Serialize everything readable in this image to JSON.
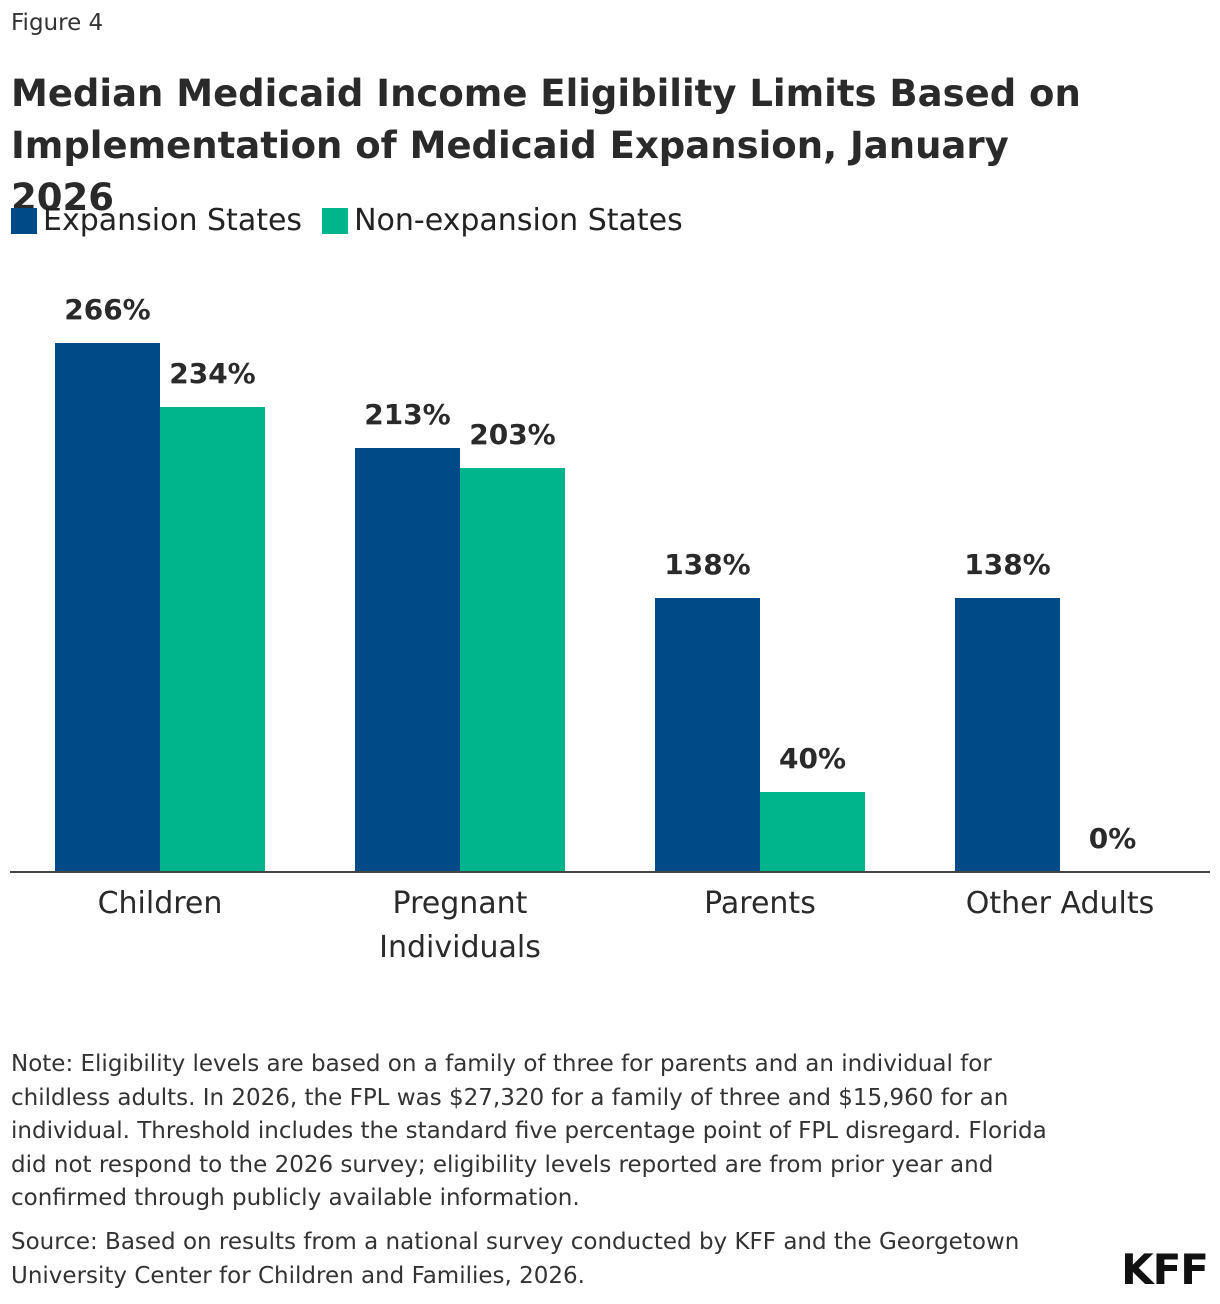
{
  "figure_label": "Figure 4",
  "chart_data": {
    "type": "bar",
    "title": "Median Medicaid Income Eligibility Limits Based on Implementation of Medicaid Expansion, January 2026",
    "categories": [
      "Children",
      "Pregnant Individuals",
      "Parents",
      "Other Adults"
    ],
    "series": [
      {
        "name": "Expansion States",
        "color": "#004a87",
        "values": [
          266,
          213,
          138,
          138
        ],
        "value_labels": [
          "266%",
          "213%",
          "138%",
          "138%"
        ]
      },
      {
        "name": "Non-expansion States",
        "color": "#00b48b",
        "values": [
          234,
          203,
          40,
          0
        ],
        "value_labels": [
          "234%",
          "203%",
          "40%",
          "0%"
        ]
      }
    ],
    "legend": "top-left"
  },
  "note": "Note: Eligibility levels are based on a family of three for parents and an individual for childless adults. In 2026, the FPL was $27,320 for a family of three and $15,960 for an individual. Threshold includes the standard five percentage point of FPL disregard. Florida did not respond to the 2026 survey; eligibility levels reported are from prior year and confirmed through publicly available information.",
  "source": "Source: Based on results from a national survey conducted by KFF and the Georgetown University Center for Children and Families, 2026.",
  "logo": "KFF"
}
